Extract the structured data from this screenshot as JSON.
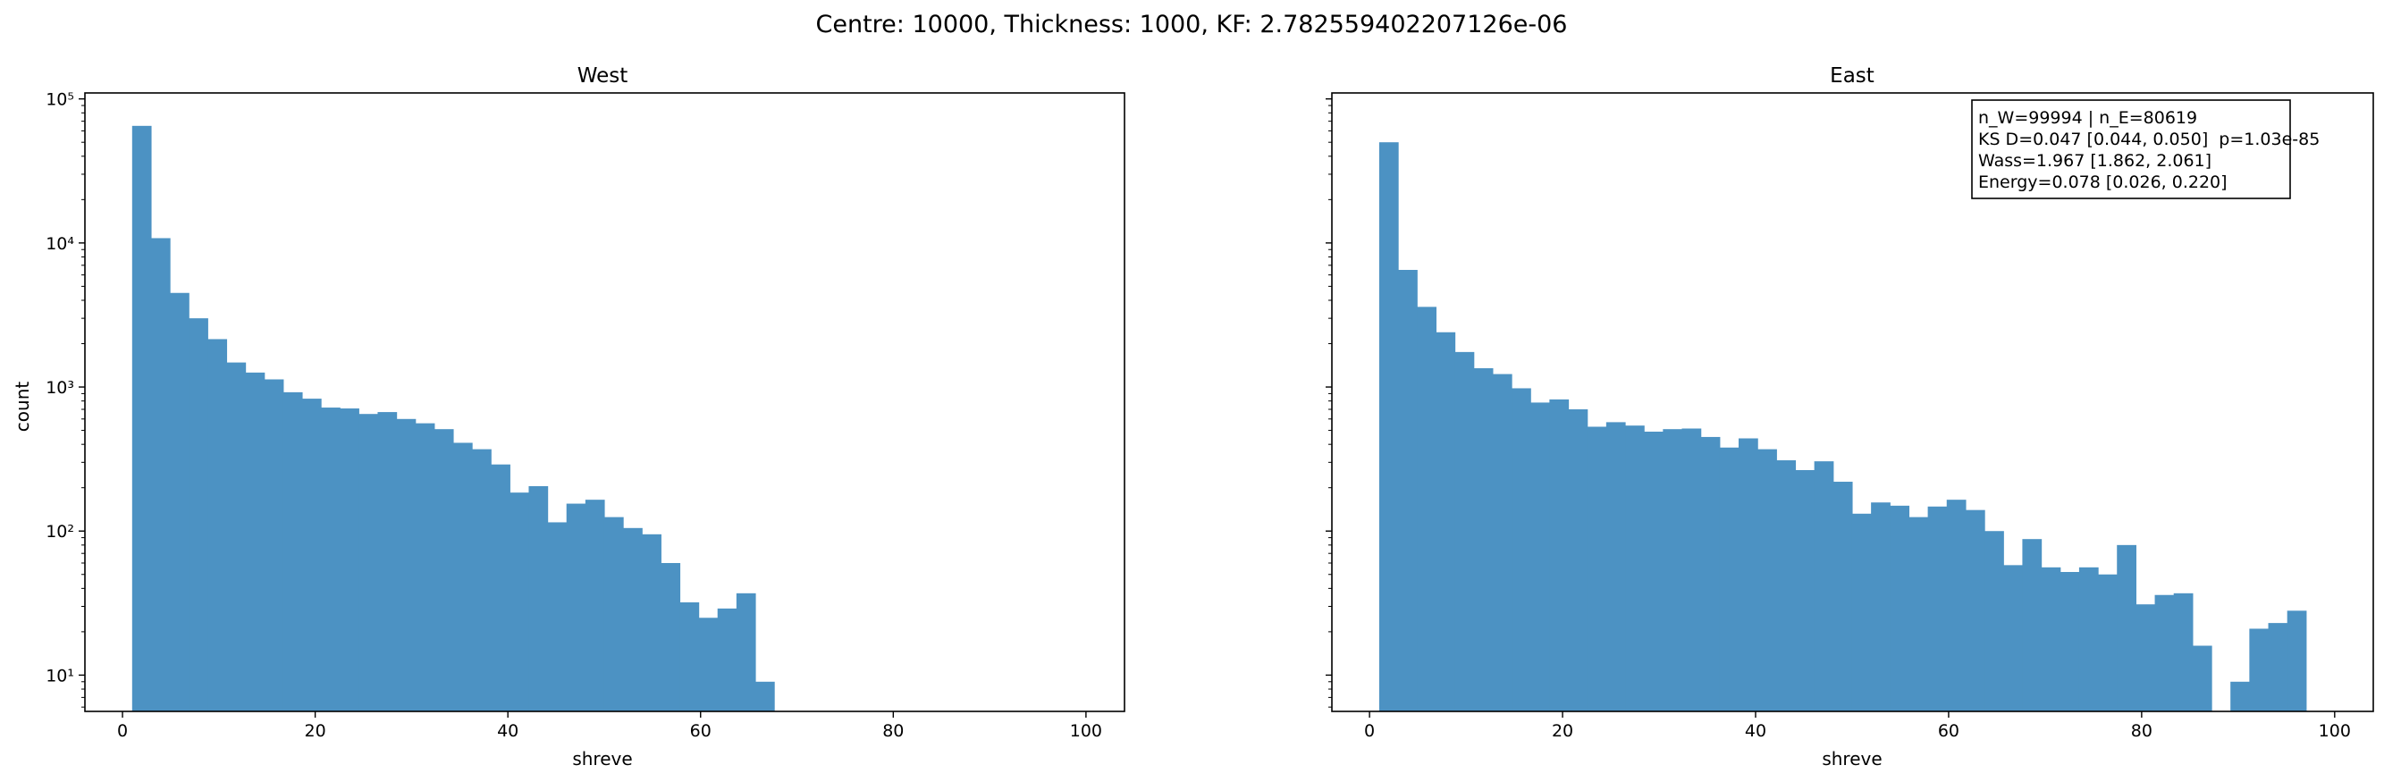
{
  "figure": {
    "suptitle": "Centre: 10000, Thickness: 1000, KF: 2.782559402207126e-06",
    "bar_color": "#4c92c3"
  },
  "chart_data": [
    {
      "type": "bar",
      "title": "West",
      "xlabel": "shreve",
      "ylabel": "count",
      "yscale": "log",
      "xlim": [
        -3.9,
        104
      ],
      "ylim": [
        5.6,
        110000
      ],
      "grid": false,
      "x_ticks": [
        0,
        20,
        40,
        60,
        80,
        100
      ],
      "x_tick_labels": [
        "0",
        "20",
        "40",
        "60",
        "80",
        "100"
      ],
      "y_ticks": [
        10,
        100,
        1000,
        10000,
        100000
      ],
      "y_tick_labels": [
        "10¹",
        "10²",
        "10³",
        "10⁴",
        "10⁵"
      ],
      "bin_width": 1.96,
      "bin_start": 1,
      "values": [
        65000,
        10800,
        4500,
        3000,
        2150,
        1480,
        1260,
        1130,
        920,
        830,
        720,
        710,
        650,
        670,
        600,
        560,
        510,
        410,
        370,
        290,
        185,
        205,
        115,
        155,
        165,
        125,
        105,
        95,
        60,
        32,
        25,
        29,
        37,
        9
      ]
    },
    {
      "type": "bar",
      "title": "East",
      "xlabel": "shreve",
      "yscale": "log",
      "xlim": [
        -3.9,
        104
      ],
      "ylim": [
        5.6,
        110000
      ],
      "grid": false,
      "x_ticks": [
        0,
        20,
        40,
        60,
        80,
        100
      ],
      "x_tick_labels": [
        "0",
        "20",
        "40",
        "60",
        "80",
        "100"
      ],
      "y_ticks": [
        10,
        100,
        1000,
        10000,
        100000
      ],
      "bin_width": 1.96,
      "bin_start": 1,
      "values": [
        50000,
        6500,
        3600,
        2400,
        1750,
        1350,
        1230,
        980,
        780,
        820,
        700,
        530,
        570,
        540,
        490,
        510,
        515,
        450,
        380,
        440,
        370,
        310,
        265,
        305,
        220,
        132,
        158,
        150,
        125,
        148,
        165,
        140,
        100,
        58,
        88,
        56,
        52,
        56,
        50,
        80,
        31,
        36,
        37,
        16,
        0,
        9,
        21,
        23,
        28
      ],
      "stats_box": {
        "location": "upper right",
        "lines": [
          "n_W=99994 | n_E=80619",
          "KS D=0.047 [0.044, 0.050]  p=1.03e-85",
          "Wass=1.967 [1.862, 2.061]",
          "Energy=0.078 [0.026, 0.220]"
        ]
      }
    }
  ]
}
